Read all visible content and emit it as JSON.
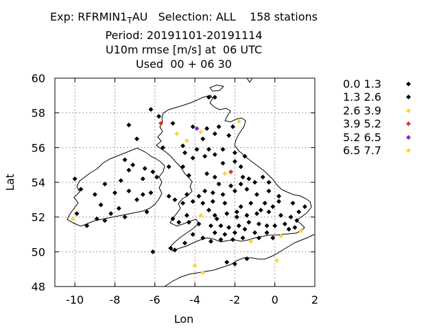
{
  "title": {
    "line1": "Exp: RFRMIN1",
    "line1_sub": "T",
    "line1_rest": "AU   Selection: ALL    158 stations",
    "line2": "Period: 20191101-20191114",
    "line3": "U10m rmse [m/s] at  06 UTC",
    "line4": "Used  00 + 06 30"
  },
  "chart_data": {
    "type": "scatter",
    "xlabel": "Lon",
    "ylabel": "Lat",
    "xlim": [
      -11,
      2
    ],
    "ylim": [
      48,
      60
    ],
    "xticks": [
      -10,
      -8,
      -6,
      -4,
      -2,
      0,
      2
    ],
    "yticks": [
      48,
      50,
      52,
      54,
      56,
      58,
      60
    ],
    "grid": true,
    "legend_position": "right",
    "classes": [
      {
        "label": "0.0 1.3",
        "color": "#000000"
      },
      {
        "label": "1.3 2.6",
        "color": "#000000"
      },
      {
        "label": "2.6 3.9",
        "color": "#f5d742"
      },
      {
        "label": "3.9 5.2",
        "color": "#e8341c"
      },
      {
        "label": "5.2 6.5",
        "color": "#8a1fd6"
      },
      {
        "label": "6.5 7.7",
        "color": "#f5d742"
      }
    ],
    "points": [
      [
        -3.3,
        58.9,
        1
      ],
      [
        -3.0,
        58.9,
        1
      ],
      [
        -6.2,
        58.2,
        1
      ],
      [
        -5.8,
        57.8,
        1
      ],
      [
        -5.7,
        57.4,
        3
      ],
      [
        -4.1,
        57.2,
        1
      ],
      [
        -3.9,
        57.1,
        4
      ],
      [
        -3.4,
        57.1,
        1
      ],
      [
        -2.8,
        57.2,
        1
      ],
      [
        -2.1,
        57.2,
        1
      ],
      [
        -1.8,
        57.5,
        2
      ],
      [
        -7.3,
        57.3,
        1
      ],
      [
        -5.1,
        57.4,
        1
      ],
      [
        -6.9,
        56.5,
        1
      ],
      [
        -4.9,
        56.8,
        2
      ],
      [
        -4.4,
        56.4,
        2
      ],
      [
        -3.7,
        56.9,
        2
      ],
      [
        -3.0,
        56.8,
        1
      ],
      [
        -2.3,
        56.7,
        1
      ],
      [
        -5.6,
        56.0,
        1
      ],
      [
        -4.6,
        56.1,
        1
      ],
      [
        -3.9,
        55.9,
        1
      ],
      [
        -3.3,
        55.9,
        1
      ],
      [
        -2.6,
        55.9,
        1
      ],
      [
        -3.6,
        56.5,
        1
      ],
      [
        -4.1,
        55.4,
        1
      ],
      [
        -3.5,
        55.5,
        1
      ],
      [
        -2.6,
        55.1,
        1
      ],
      [
        -2.0,
        55.2,
        1
      ],
      [
        -1.7,
        54.9,
        1
      ],
      [
        -7.5,
        55.3,
        1
      ],
      [
        -7.1,
        55.0,
        1
      ],
      [
        -6.5,
        54.8,
        1
      ],
      [
        -6.1,
        54.6,
        1
      ],
      [
        -5.9,
        54.3,
        1
      ],
      [
        -6.6,
        54.2,
        1
      ],
      [
        -7.7,
        54.1,
        1
      ],
      [
        -7.3,
        54.7,
        1
      ],
      [
        -5.3,
        54.9,
        1
      ],
      [
        -4.6,
        54.9,
        1
      ],
      [
        -4.3,
        54.4,
        1
      ],
      [
        -3.4,
        54.5,
        1
      ],
      [
        -3.0,
        54.3,
        1
      ],
      [
        -2.5,
        54.5,
        2
      ],
      [
        -2.2,
        54.6,
        3
      ],
      [
        -1.6,
        54.3,
        1
      ],
      [
        -1.3,
        54.2,
        1
      ],
      [
        -1.0,
        54.0,
        1
      ],
      [
        -0.6,
        54.3,
        1
      ],
      [
        -0.3,
        54.0,
        1
      ],
      [
        -10.0,
        54.2,
        1
      ],
      [
        -9.7,
        53.6,
        1
      ],
      [
        -9.0,
        53.3,
        1
      ],
      [
        -8.5,
        53.9,
        1
      ],
      [
        -8.0,
        53.4,
        1
      ],
      [
        -7.3,
        53.5,
        1
      ],
      [
        -6.6,
        53.3,
        1
      ],
      [
        -6.2,
        53.4,
        1
      ],
      [
        -8.7,
        52.7,
        1
      ],
      [
        -9.9,
        52.2,
        1
      ],
      [
        -8.9,
        51.9,
        1
      ],
      [
        -8.5,
        51.8,
        1
      ],
      [
        -7.5,
        52.0,
        1
      ],
      [
        -6.4,
        52.3,
        1
      ],
      [
        -10.1,
        51.9,
        2
      ],
      [
        -9.4,
        51.5,
        1
      ],
      [
        -6.1,
        50.0,
        1
      ],
      [
        -5.2,
        50.2,
        1
      ],
      [
        -5.0,
        50.1,
        1
      ],
      [
        -4.5,
        50.5,
        1
      ],
      [
        -4.1,
        51.0,
        1
      ],
      [
        -3.6,
        50.8,
        1
      ],
      [
        -3.2,
        50.6,
        1
      ],
      [
        -2.7,
        50.7,
        1
      ],
      [
        -2.1,
        50.7,
        1
      ],
      [
        -1.6,
        50.8,
        1
      ],
      [
        -1.2,
        50.6,
        2
      ],
      [
        -0.8,
        50.8,
        1
      ],
      [
        -0.1,
        50.8,
        1
      ],
      [
        0.3,
        50.9,
        2
      ],
      [
        1.3,
        51.2,
        2
      ],
      [
        1.0,
        51.4,
        1
      ],
      [
        0.5,
        51.6,
        1
      ],
      [
        0.0,
        51.5,
        1
      ],
      [
        -0.4,
        51.5,
        1
      ],
      [
        -0.8,
        51.6,
        1
      ],
      [
        -1.3,
        51.7,
        1
      ],
      [
        -1.8,
        51.5,
        1
      ],
      [
        -2.3,
        51.4,
        1
      ],
      [
        -2.7,
        51.5,
        1
      ],
      [
        -3.2,
        51.5,
        1
      ],
      [
        -3.8,
        51.6,
        1
      ],
      [
        -4.3,
        51.7,
        1
      ],
      [
        -4.8,
        51.7,
        1
      ],
      [
        -5.1,
        51.9,
        1
      ],
      [
        -4.4,
        52.1,
        1
      ],
      [
        -3.7,
        52.1,
        2
      ],
      [
        -3.0,
        52.1,
        1
      ],
      [
        -2.4,
        52.2,
        1
      ],
      [
        -1.9,
        52.3,
        1
      ],
      [
        -1.4,
        52.1,
        1
      ],
      [
        -0.9,
        52.2,
        1
      ],
      [
        -0.3,
        52.3,
        1
      ],
      [
        0.3,
        52.1,
        1
      ],
      [
        0.8,
        52.0,
        1
      ],
      [
        1.2,
        52.3,
        1
      ],
      [
        1.5,
        52.6,
        1
      ],
      [
        0.9,
        52.8,
        1
      ],
      [
        0.2,
        52.9,
        1
      ],
      [
        -0.5,
        52.8,
        1
      ],
      [
        -1.2,
        52.8,
        1
      ],
      [
        -1.7,
        52.6,
        1
      ],
      [
        -2.5,
        52.8,
        1
      ],
      [
        -3.1,
        52.9,
        1
      ],
      [
        -3.6,
        52.8,
        1
      ],
      [
        -4.1,
        52.9,
        1
      ],
      [
        -4.6,
        52.8,
        1
      ],
      [
        -4.4,
        53.3,
        1
      ],
      [
        -3.8,
        53.2,
        1
      ],
      [
        -3.1,
        53.4,
        1
      ],
      [
        -2.6,
        53.3,
        1
      ],
      [
        -2.0,
        53.5,
        1
      ],
      [
        -1.4,
        53.6,
        1
      ],
      [
        -0.9,
        53.3,
        1
      ],
      [
        -0.3,
        53.5,
        1
      ],
      [
        0.2,
        53.2,
        1
      ],
      [
        -2.8,
        53.9,
        1
      ],
      [
        -2.2,
        53.8,
        1
      ],
      [
        -1.7,
        53.9,
        1
      ],
      [
        -4.0,
        49.2,
        2
      ],
      [
        -3.6,
        48.8,
        2
      ],
      [
        -2.4,
        49.4,
        1
      ],
      [
        -2.0,
        49.3,
        1
      ],
      [
        -1.4,
        49.6,
        1
      ],
      [
        0.1,
        49.5,
        2
      ],
      [
        -5.3,
        53.2,
        1
      ],
      [
        -5.0,
        53.0,
        1
      ],
      [
        -3.5,
        53.5,
        1
      ],
      [
        -0.7,
        52.4,
        1
      ],
      [
        -1.9,
        52.0,
        1
      ],
      [
        -2.9,
        51.9,
        1
      ],
      [
        -3.3,
        52.4,
        1
      ],
      [
        -0.1,
        52.6,
        1
      ],
      [
        1.1,
        51.8,
        1
      ],
      [
        0.7,
        51.3,
        1
      ],
      [
        -1.0,
        51.1,
        1
      ],
      [
        -1.5,
        51.3,
        1
      ],
      [
        -2.0,
        51.1,
        1
      ],
      [
        -2.5,
        51.0,
        1
      ],
      [
        -3.0,
        51.1,
        1
      ],
      [
        -0.4,
        51.1,
        1
      ],
      [
        -4.5,
        55.7,
        1
      ],
      [
        -3.0,
        55.6,
        1
      ],
      [
        -2.0,
        55.7,
        1
      ],
      [
        -1.5,
        55.5,
        1
      ],
      [
        -6.9,
        53.0,
        1
      ],
      [
        -7.8,
        52.5,
        1
      ],
      [
        -8.2,
        52.2,
        1
      ]
    ]
  }
}
